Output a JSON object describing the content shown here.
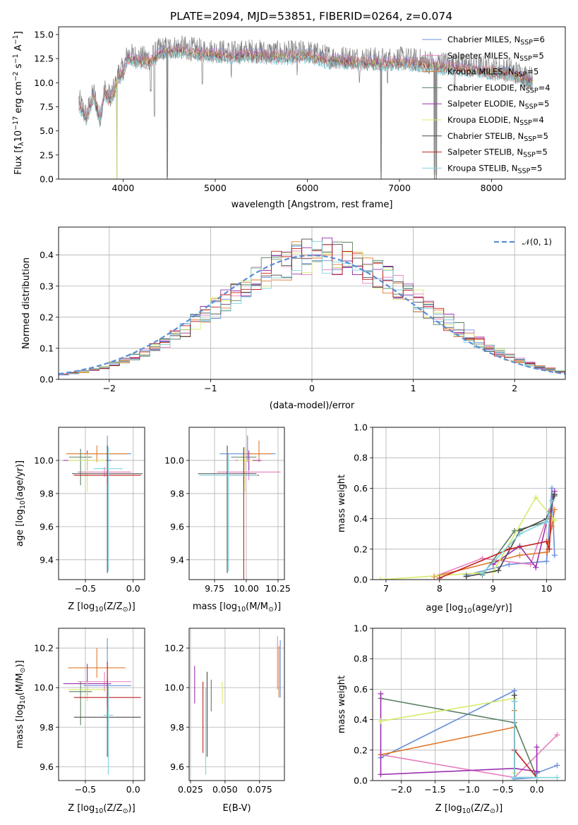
{
  "figure_title": "PLATE=2094, MJD=53851, FIBERID=0264, z=0.074",
  "models": [
    {
      "name": "Chabrier MILES, N",
      "sub": "SSP",
      "tail": "=6",
      "color": "#6b8fdc"
    },
    {
      "name": "Salpeter MILES, N",
      "sub": "SSP",
      "tail": "=5",
      "color": "#e57fbd"
    },
    {
      "name": "Kroupa MILES, N",
      "sub": "SSP",
      "tail": "=5",
      "color": "#e07a2c"
    },
    {
      "name": "Chabrier ELODIE, N",
      "sub": "SSP",
      "tail": "=4",
      "color": "#5a8060"
    },
    {
      "name": "Salpeter ELODIE, N",
      "sub": "SSP",
      "tail": "=5",
      "color": "#9b31ae"
    },
    {
      "name": "Kroupa ELODIE, N",
      "sub": "SSP",
      "tail": "=4",
      "color": "#d6ec6a"
    },
    {
      "name": "Chabrier STELIB, N",
      "sub": "SSP",
      "tail": "=5",
      "color": "#4a4a4a"
    },
    {
      "name": "Salpeter STELIB, N",
      "sub": "SSP",
      "tail": "=5",
      "color": "#c02020"
    },
    {
      "name": "Kroupa STELIB, N",
      "sub": "SSP",
      "tail": "=5",
      "color": "#7fd3e0"
    }
  ],
  "chart_data": [
    {
      "id": "spectrum",
      "type": "line",
      "xlabel": "wavelength [Angstrom, rest frame]",
      "ylabel": "Flux [f",
      "ylabel_sub": "λ",
      "ylabel_mid": "10",
      "ylabel_exp1": "−17",
      "ylabel_mid2": " erg cm",
      "ylabel_exp2": "−2",
      "ylabel_mid3": " s",
      "ylabel_exp3": "−1",
      "ylabel_mid4": " A",
      "ylabel_exp4": "−1",
      "ylabel_end": "]",
      "xlim": [
        3300,
        8800
      ],
      "ylim": [
        0,
        15.8
      ],
      "xticks": [
        "4000",
        "5000",
        "6000",
        "7000",
        "8000"
      ],
      "yticks": [
        "0.0",
        "2.5",
        "5.0",
        "7.5",
        "10.0",
        "12.5",
        "15.0"
      ],
      "grid": false,
      "legend": "upper right",
      "continuum": [
        [
          3520,
          8.2
        ],
        [
          3600,
          6.6
        ],
        [
          3680,
          9.0
        ],
        [
          3750,
          6.4
        ],
        [
          3800,
          9.4
        ],
        [
          3850,
          8.6
        ],
        [
          3900,
          9.2
        ],
        [
          3950,
          11.0
        ],
        [
          4000,
          11.4
        ],
        [
          4050,
          13.0
        ],
        [
          4100,
          12.8
        ],
        [
          4200,
          12.6
        ],
        [
          4300,
          12.5
        ],
        [
          4400,
          13.5
        ],
        [
          4600,
          13.7
        ],
        [
          4800,
          13.4
        ],
        [
          5000,
          13.3
        ],
        [
          5200,
          13.1
        ],
        [
          5400,
          13.3
        ],
        [
          5600,
          13.1
        ],
        [
          5800,
          13.1
        ],
        [
          6000,
          13.2
        ],
        [
          6200,
          12.7
        ],
        [
          6400,
          12.6
        ],
        [
          6600,
          12.5
        ],
        [
          6800,
          12.4
        ],
        [
          7000,
          12.5
        ],
        [
          7200,
          12.3
        ],
        [
          7400,
          12.1
        ],
        [
          7600,
          11.9
        ],
        [
          7800,
          11.7
        ],
        [
          8000,
          11.5
        ],
        [
          8200,
          11.3
        ],
        [
          8400,
          10.6
        ],
        [
          8450,
          10.4
        ]
      ],
      "absorption": [
        [
          3935,
          0
        ],
        [
          4300,
          8.8
        ],
        [
          4340,
          6.4
        ],
        [
          4480,
          0
        ],
        [
          4860,
          9.5
        ],
        [
          5175,
          10.2
        ],
        [
          5890,
          10.5
        ],
        [
          6565,
          9.6
        ],
        [
          6800,
          0
        ],
        [
          6870,
          9.8
        ],
        [
          7380,
          0
        ],
        [
          7400,
          0
        ],
        [
          7600,
          9.0
        ]
      ]
    },
    {
      "id": "residuals",
      "type": "histogram",
      "xlabel": "(data-model)/error",
      "ylabel": "Normed distribution",
      "xlim": [
        -2.5,
        2.5
      ],
      "ylim": [
        0,
        0.49
      ],
      "xticks": [
        "−2",
        "−1",
        "0",
        "1",
        "2"
      ],
      "yticks": [
        "0.0",
        "0.1",
        "0.2",
        "0.3",
        "0.4"
      ],
      "grid": true,
      "legend_label": "𝒩(0, 1)",
      "legend": "upper right",
      "reference": "normal(0,1)"
    },
    {
      "id": "age_vs_Z",
      "type": "errorbar",
      "xlabel": "Z [log",
      "xlabel_sub": "10",
      "xlabel_end": "(Z/Z",
      "xlabel_sub2": "⊙",
      "xlabel_end2": ")]",
      "ylabel": "age  [log",
      "ylabel_sub": "10",
      "ylabel_end": "(age/yr)]",
      "xlim": [
        -0.78,
        0.12
      ],
      "ylim": [
        9.28,
        10.2
      ],
      "xticks": [
        "−0.5",
        "0.0"
      ],
      "yticks": [
        "9.4",
        "9.6",
        "9.8",
        "10.0"
      ],
      "grid": true,
      "points": [
        {
          "x": -0.27,
          "y": 10.04,
          "xerr": 0.25,
          "yerr": [
            0.05,
            0.11
          ]
        },
        {
          "x": -0.3,
          "y": 9.93,
          "xerr": 0.28,
          "yerr": [
            0.03,
            0.03
          ]
        },
        {
          "x": -0.38,
          "y": 10.04,
          "xerr": 0.32,
          "yerr": [
            0.05,
            0.05
          ]
        },
        {
          "x": -0.55,
          "y": 10.02,
          "xerr": 0.12,
          "yerr": [
            0.17,
            0.05
          ]
        },
        {
          "x": -0.48,
          "y": 10.0,
          "xerr": 0.25,
          "yerr": [
            0.06,
            0.06
          ]
        },
        {
          "x": -0.48,
          "y": 10.0,
          "xerr": 0.2,
          "yerr": [
            0.19,
            0.04
          ]
        },
        {
          "x": -0.27,
          "y": 9.92,
          "xerr": 0.37,
          "yerr": [
            0.6,
            0.17
          ]
        },
        {
          "x": -0.27,
          "y": 9.91,
          "xerr": 0.35,
          "yerr": [
            0.05,
            0.05
          ]
        },
        {
          "x": -0.26,
          "y": 9.95,
          "xerr": 0.15,
          "yerr": [
            0.62,
            0.13
          ]
        }
      ]
    },
    {
      "id": "age_vs_mass",
      "type": "errorbar",
      "xlabel": "mass [log",
      "xlabel_sub": "10",
      "xlabel_end": "(M/M",
      "xlabel_sub2": "⊙",
      "xlabel_end2": ")]",
      "xlim": [
        9.55,
        10.3
      ],
      "ylim": [
        9.28,
        10.2
      ],
      "xticks": [
        "9.75",
        "10.00",
        "10.25"
      ],
      "yticks": [
        "9.4",
        "9.6",
        "9.8",
        "10.0"
      ],
      "grid": true,
      "points": [
        {
          "x": 10.01,
          "y": 10.04,
          "xerr": 0.22,
          "yerr": [
            0.05,
            0.11
          ]
        },
        {
          "x": 10.02,
          "y": 9.93,
          "xerr": 0.25,
          "yerr": [
            0.05,
            0.08
          ]
        },
        {
          "x": 10.1,
          "y": 10.04,
          "xerr": 0.1,
          "yerr": [
            0.05,
            0.08
          ]
        },
        {
          "x": 9.98,
          "y": 10.02,
          "xerr": 0.1,
          "yerr": [
            0.17,
            0.05
          ]
        },
        {
          "x": 10.02,
          "y": 10.0,
          "xerr": 0.1,
          "yerr": [
            0.06,
            0.06
          ]
        },
        {
          "x": 9.99,
          "y": 10.0,
          "xerr": 0.06,
          "yerr": [
            0.19,
            0.08
          ]
        },
        {
          "x": 9.85,
          "y": 9.92,
          "xerr": 0.23,
          "yerr": [
            0.6,
            0.17
          ]
        },
        {
          "x": 9.98,
          "y": 9.91,
          "xerr": 0.12,
          "yerr": [
            0.65,
            0.17
          ]
        },
        {
          "x": 9.86,
          "y": 9.91,
          "xerr": 0.23,
          "yerr": [
            0.58,
            0.13
          ]
        }
      ]
    },
    {
      "id": "weight_vs_age",
      "type": "line",
      "xlabel": "age  [log",
      "xlabel_sub": "10",
      "xlabel_end": "(age/yr)]",
      "ylabel": "mass weight",
      "xlim": [
        6.75,
        10.35
      ],
      "ylim": [
        0,
        1.0
      ],
      "xticks": [
        "7",
        "8",
        "9",
        "10"
      ],
      "yticks": [
        "0.0",
        "0.2",
        "0.4",
        "0.6",
        "0.8",
        "1.0"
      ],
      "grid": true,
      "series": [
        {
          "x": [
            8.5,
            9.3,
            10.0,
            10.1,
            10.15
          ],
          "y": [
            0.03,
            0.1,
            0.12,
            0.6,
            0.16
          ]
        },
        {
          "x": [
            7.9,
            8.8,
            9.7,
            10.05,
            10.15
          ],
          "y": [
            0.02,
            0.14,
            0.1,
            0.45,
            0.55
          ]
        },
        {
          "x": [
            7.9,
            9.5,
            10.0,
            10.1,
            10.15
          ],
          "y": [
            0.02,
            0.16,
            0.18,
            0.35,
            0.46
          ]
        },
        {
          "x": [
            8.8,
            9.4,
            10.0,
            10.15
          ],
          "y": [
            0.03,
            0.32,
            0.38,
            0.55
          ]
        },
        {
          "x": [
            9.0,
            9.5,
            9.8,
            10.05,
            10.15
          ],
          "y": [
            0.1,
            0.22,
            0.08,
            0.45,
            0.58
          ]
        },
        {
          "x": [
            6.9,
            9.0,
            9.8,
            10.15
          ],
          "y": [
            0.0,
            0.05,
            0.54,
            0.39
          ]
        },
        {
          "x": [
            8.5,
            9.1,
            9.5,
            10.0,
            10.15
          ],
          "y": [
            0.02,
            0.06,
            0.32,
            0.4,
            0.56
          ]
        },
        {
          "x": [
            8.0,
            9.3,
            10.0,
            10.05,
            10.1
          ],
          "y": [
            0.01,
            0.2,
            0.25,
            0.2,
            0.52
          ]
        },
        {
          "x": [
            8.8,
            9.5,
            10.0,
            10.1
          ],
          "y": [
            0.04,
            0.3,
            0.38,
            0.52
          ]
        }
      ]
    },
    {
      "id": "mass_vs_Z",
      "type": "errorbar",
      "xlabel": "Z [log",
      "xlabel_sub": "10",
      "xlabel_end": "(Z/Z",
      "xlabel_sub2": "⊙",
      "xlabel_end2": ")]",
      "ylabel": "mass [log",
      "ylabel_sub": "10",
      "ylabel_end": "(M/M",
      "ylabel_sub2": "⊙",
      "ylabel_end2": ")]",
      "xlim": [
        -0.78,
        0.12
      ],
      "ylim": [
        9.53,
        10.3
      ],
      "xticks": [
        "−0.5",
        "0.0"
      ],
      "yticks": [
        "9.6",
        "9.8",
        "10.0",
        "10.2"
      ],
      "grid": true,
      "points": [
        {
          "x": -0.27,
          "y": 10.01,
          "xerr": 0.25,
          "yerr": [
            0.05,
            0.24
          ]
        },
        {
          "x": -0.3,
          "y": 10.03,
          "xerr": 0.28,
          "yerr": [
            0.05,
            0.05
          ]
        },
        {
          "x": -0.38,
          "y": 10.1,
          "xerr": 0.3,
          "yerr": [
            0.05,
            0.1
          ]
        },
        {
          "x": -0.55,
          "y": 9.98,
          "xerr": 0.12,
          "yerr": [
            0.17,
            0.05
          ]
        },
        {
          "x": -0.48,
          "y": 10.02,
          "xerr": 0.25,
          "yerr": [
            0.06,
            0.1
          ]
        },
        {
          "x": -0.48,
          "y": 9.99,
          "xerr": 0.2,
          "yerr": [
            0.06,
            0.04
          ]
        },
        {
          "x": -0.27,
          "y": 9.85,
          "xerr": 0.35,
          "yerr": [
            0.2,
            0.2
          ]
        },
        {
          "x": -0.27,
          "y": 9.95,
          "xerr": 0.35,
          "yerr": [
            0.05,
            0.18
          ]
        },
        {
          "x": -0.26,
          "y": 9.86,
          "xerr": 0.05,
          "yerr": [
            0.3,
            0.16
          ]
        }
      ]
    },
    {
      "id": "mass_vs_ebv",
      "type": "errorbar",
      "xlabel": "E(B-V)",
      "xlim": [
        0.024,
        0.093
      ],
      "ylim": [
        9.53,
        10.3
      ],
      "xticks": [
        "0.025",
        "0.050",
        "0.075"
      ],
      "yticks": [
        "9.6",
        "9.8",
        "10.0",
        "10.2"
      ],
      "grid": true,
      "points": [
        {
          "x": 0.09,
          "y": 10.01,
          "xerr": 0,
          "yerr": [
            0.06,
            0.23
          ]
        },
        {
          "x": 0.088,
          "y": 10.03,
          "xerr": 0,
          "yerr": [
            0.04,
            0.23
          ]
        },
        {
          "x": 0.089,
          "y": 10.1,
          "xerr": 0,
          "yerr": [
            0.15,
            0.11
          ]
        },
        {
          "x": 0.04,
          "y": 9.98,
          "xerr": 0,
          "yerr": [
            0.1,
            0.06
          ]
        },
        {
          "x": 0.028,
          "y": 10.02,
          "xerr": 0,
          "yerr": [
            0.1,
            0.09
          ]
        },
        {
          "x": 0.048,
          "y": 9.99,
          "xerr": 0,
          "yerr": [
            0.07,
            0.04
          ]
        },
        {
          "x": 0.037,
          "y": 9.85,
          "xerr": 0,
          "yerr": [
            0.2,
            0.23
          ]
        },
        {
          "x": 0.034,
          "y": 9.95,
          "xerr": 0,
          "yerr": [
            0.28,
            0.08
          ]
        },
        {
          "x": 0.036,
          "y": 9.8,
          "xerr": 0,
          "yerr": [
            0.24,
            0.2
          ]
        }
      ]
    },
    {
      "id": "weight_vs_Z",
      "type": "line",
      "xlabel": "Z [log",
      "xlabel_sub": "10",
      "xlabel_end": "(Z/Z",
      "xlabel_sub2": "⊙",
      "xlabel_end2": ")]",
      "ylabel": "mass weight",
      "xlim": [
        -2.42,
        0.42
      ],
      "ylim": [
        0,
        1.0
      ],
      "xticks": [
        "−2.0",
        "−1.5",
        "−1.0",
        "−0.5",
        "0.0"
      ],
      "yticks": [
        "0.0",
        "0.2",
        "0.4",
        "0.6",
        "0.8",
        "1.0"
      ],
      "grid": true,
      "series": [
        {
          "x": [
            -2.3,
            -0.33,
            -0.33,
            0.0,
            0.0,
            0.3
          ],
          "y": [
            0.15,
            0.59,
            0.01,
            0.02,
            0.05,
            0.1
          ]
        },
        {
          "x": [
            -2.3,
            -0.33,
            0.3
          ],
          "y": [
            0.17,
            0.02,
            0.3
          ]
        },
        {
          "x": [
            -2.3,
            -0.33,
            -0.33
          ],
          "y": [
            0.17,
            0.35,
            0.46
          ]
        },
        {
          "x": [
            -2.3,
            -0.33,
            0.0
          ],
          "y": [
            0.54,
            0.38,
            0.02
          ]
        },
        {
          "x": [
            -2.3,
            -2.3,
            -0.33,
            0.0,
            0.0
          ],
          "y": [
            0.57,
            0.04,
            0.08,
            0.06,
            0.22
          ]
        },
        {
          "x": [
            -2.3,
            -0.33,
            -0.33
          ],
          "y": [
            0.39,
            0.54,
            0.05
          ]
        },
        {
          "x": [
            -0.33,
            -0.33,
            0.0
          ],
          "y": [
            0.56,
            0.02,
            0.02
          ]
        },
        {
          "x": [
            -0.33,
            -0.33,
            0.0
          ],
          "y": [
            0.52,
            0.2,
            0.02
          ]
        },
        {
          "x": [
            -0.33,
            -0.33,
            0.0,
            0.3
          ],
          "y": [
            0.52,
            0.02,
            0.02,
            0.02
          ]
        }
      ]
    }
  ]
}
